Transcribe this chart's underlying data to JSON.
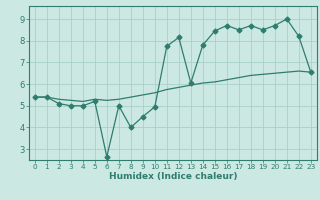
{
  "line1_x": [
    0,
    1,
    2,
    3,
    4,
    5,
    6,
    7,
    8,
    9,
    10,
    11,
    12,
    13,
    14,
    15,
    16,
    17,
    18,
    19,
    20,
    21,
    22,
    23
  ],
  "line1_y": [
    5.4,
    5.4,
    5.1,
    5.0,
    5.0,
    5.2,
    2.65,
    5.0,
    4.0,
    4.5,
    4.95,
    7.75,
    8.15,
    6.05,
    7.8,
    8.45,
    8.7,
    8.5,
    8.7,
    8.5,
    8.7,
    9.0,
    8.2,
    6.55
  ],
  "line2_x": [
    0,
    1,
    2,
    3,
    4,
    5,
    6,
    7,
    8,
    9,
    10,
    11,
    12,
    13,
    14,
    15,
    16,
    17,
    18,
    19,
    20,
    21,
    22,
    23
  ],
  "line2_y": [
    5.4,
    5.4,
    5.3,
    5.25,
    5.2,
    5.3,
    5.25,
    5.3,
    5.4,
    5.5,
    5.6,
    5.75,
    5.85,
    5.95,
    6.05,
    6.1,
    6.2,
    6.3,
    6.4,
    6.45,
    6.5,
    6.55,
    6.6,
    6.55
  ],
  "line_color": "#2e7d6e",
  "bg_color": "#cce8e2",
  "grid_color": "#aacfc9",
  "xlabel": "Humidex (Indice chaleur)",
  "xlim": [
    -0.5,
    23.5
  ],
  "ylim": [
    2.5,
    9.6
  ],
  "yticks": [
    3,
    4,
    5,
    6,
    7,
    8,
    9
  ],
  "xticks": [
    0,
    1,
    2,
    3,
    4,
    5,
    6,
    7,
    8,
    9,
    10,
    11,
    12,
    13,
    14,
    15,
    16,
    17,
    18,
    19,
    20,
    21,
    22,
    23
  ],
  "marker": "D",
  "markersize": 2.5
}
